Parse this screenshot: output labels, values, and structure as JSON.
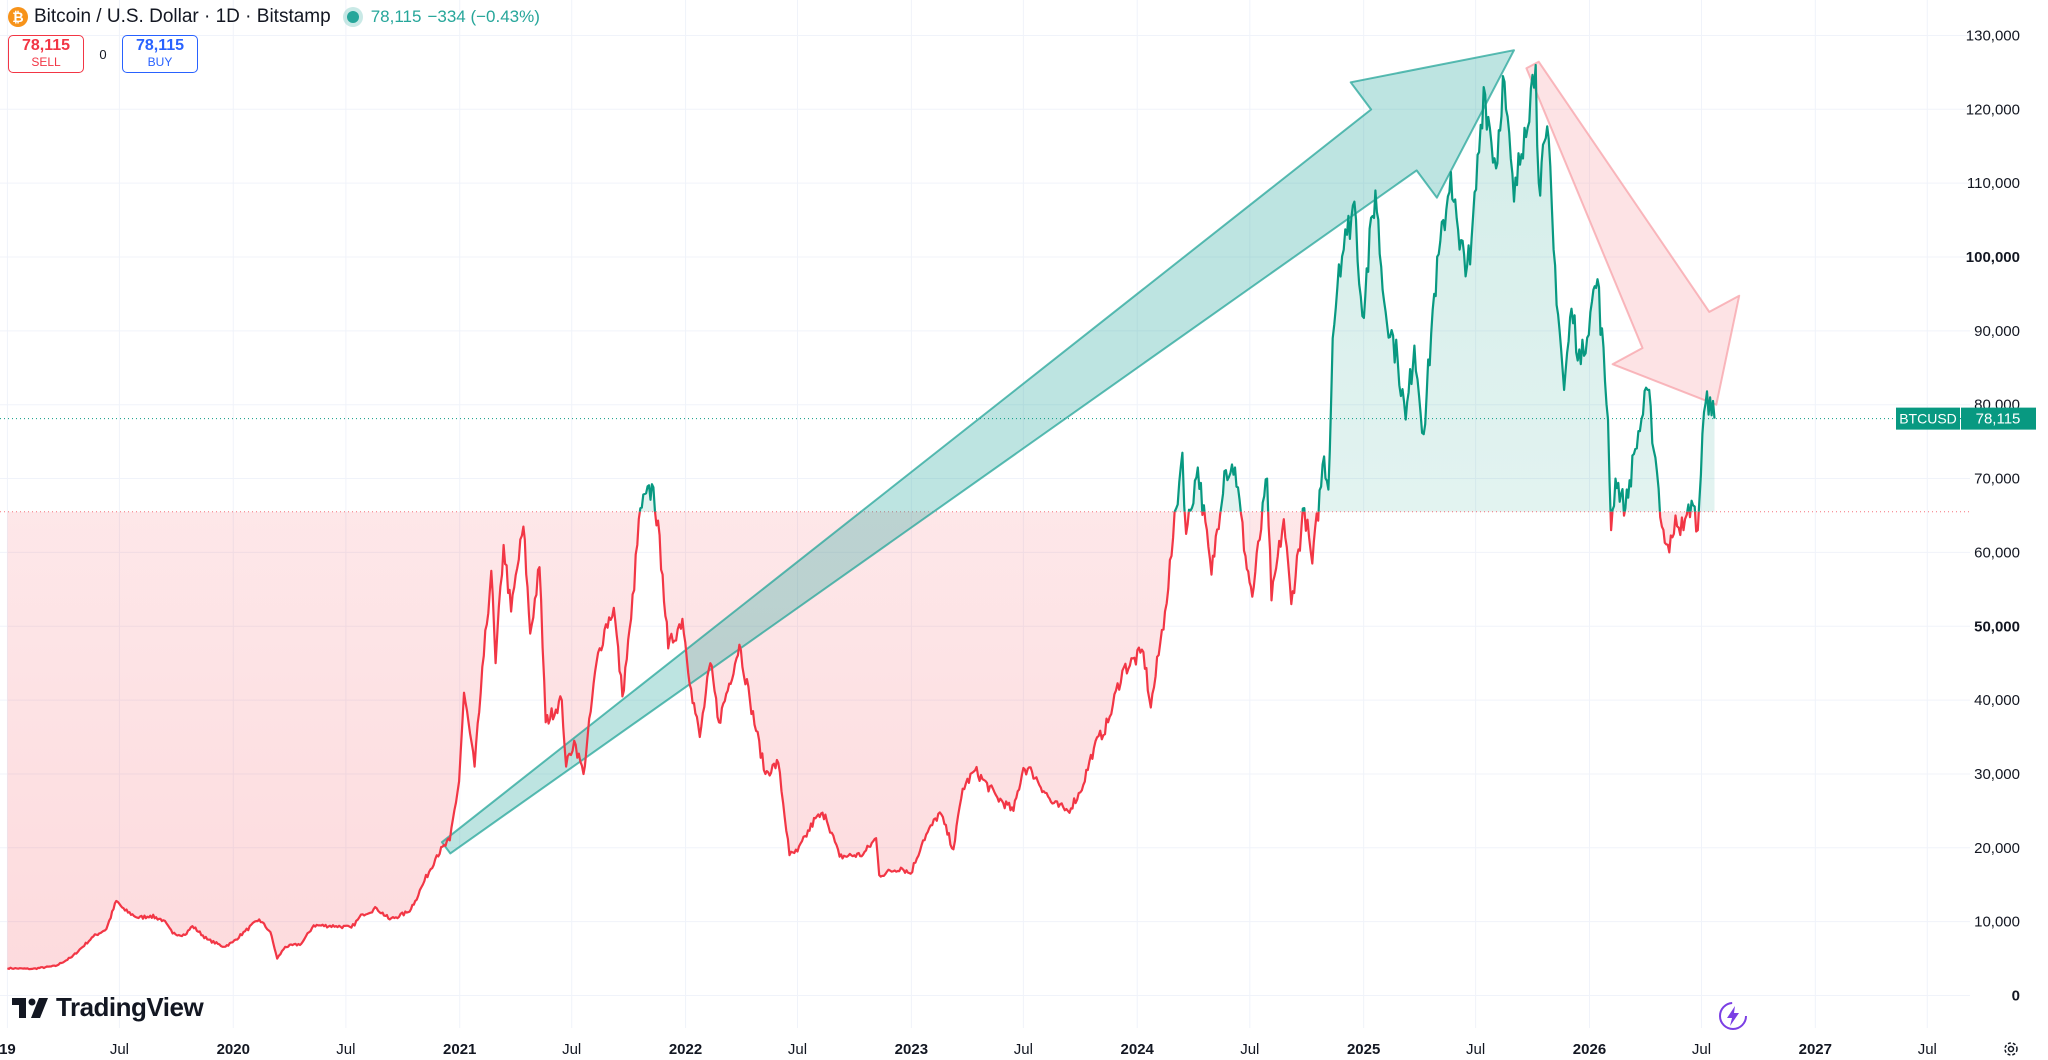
{
  "header": {
    "symbol_title": "Bitcoin / U.S. Dollar · 1D · Bitstamp",
    "last_price": "78,115",
    "change": "−334 (−0.43%)"
  },
  "trade": {
    "sell_price": "78,115",
    "sell_label": "SELL",
    "spread": "0",
    "buy_price": "78,115",
    "buy_label": "BUY"
  },
  "branding": {
    "logo_text": "TradingView"
  },
  "colors": {
    "up": "#089981",
    "down": "#f23645",
    "grid": "#f0f3fa",
    "text": "#131722"
  },
  "chart_data": {
    "type": "line",
    "series": [
      {
        "ticker": "BTCUSD",
        "baseline": 65500,
        "points": [
          [
            "2019-01-01",
            3700
          ],
          [
            "2019-02-10",
            3600
          ],
          [
            "2019-03-20",
            4000
          ],
          [
            "2019-04-15",
            5200
          ],
          [
            "2019-05-20",
            8000
          ],
          [
            "2019-06-10",
            9000
          ],
          [
            "2019-06-26",
            12800
          ],
          [
            "2019-07-10",
            11500
          ],
          [
            "2019-08-01",
            10500
          ],
          [
            "2019-08-20",
            10800
          ],
          [
            "2019-09-10",
            10200
          ],
          [
            "2019-09-25",
            8400
          ],
          [
            "2019-10-15",
            8200
          ],
          [
            "2019-10-27",
            9400
          ],
          [
            "2019-11-20",
            7600
          ],
          [
            "2019-12-17",
            6600
          ],
          [
            "2019-12-31",
            7200
          ],
          [
            "2020-01-20",
            8700
          ],
          [
            "2020-02-12",
            10300
          ],
          [
            "2020-03-01",
            8600
          ],
          [
            "2020-03-12",
            5000
          ],
          [
            "2020-03-25",
            6600
          ],
          [
            "2020-04-20",
            7000
          ],
          [
            "2020-05-10",
            9500
          ],
          [
            "2020-06-15",
            9400
          ],
          [
            "2020-07-10",
            9200
          ],
          [
            "2020-07-28",
            11000
          ],
          [
            "2020-08-20",
            11800
          ],
          [
            "2020-09-10",
            10300
          ],
          [
            "2020-10-10",
            11300
          ],
          [
            "2020-10-21",
            12800
          ],
          [
            "2020-11-05",
            15500
          ],
          [
            "2020-11-25",
            19000
          ],
          [
            "2020-12-16",
            21000
          ],
          [
            "2020-12-31",
            29000
          ],
          [
            "2021-01-08",
            41000
          ],
          [
            "2021-01-25",
            31000
          ],
          [
            "2021-02-09",
            46000
          ],
          [
            "2021-02-21",
            57500
          ],
          [
            "2021-02-28",
            45000
          ],
          [
            "2021-03-13",
            61000
          ],
          [
            "2021-03-25",
            52000
          ],
          [
            "2021-04-14",
            63500
          ],
          [
            "2021-04-25",
            49000
          ],
          [
            "2021-05-10",
            58000
          ],
          [
            "2021-05-20",
            37000
          ],
          [
            "2021-06-15",
            40000
          ],
          [
            "2021-06-22",
            31000
          ],
          [
            "2021-07-05",
            34500
          ],
          [
            "2021-07-20",
            30000
          ],
          [
            "2021-08-10",
            45000
          ],
          [
            "2021-08-23",
            49500
          ],
          [
            "2021-09-07",
            52500
          ],
          [
            "2021-09-21",
            40500
          ],
          [
            "2021-10-05",
            51000
          ],
          [
            "2021-10-20",
            66000
          ],
          [
            "2021-11-10",
            68800
          ],
          [
            "2021-11-25",
            57000
          ],
          [
            "2021-12-04",
            47000
          ],
          [
            "2021-12-27",
            51000
          ],
          [
            "2022-01-10",
            41500
          ],
          [
            "2022-01-24",
            35000
          ],
          [
            "2022-02-10",
            45000
          ],
          [
            "2022-02-24",
            37000
          ],
          [
            "2022-03-29",
            47500
          ],
          [
            "2022-04-15",
            40000
          ],
          [
            "2022-05-10",
            30000
          ],
          [
            "2022-05-31",
            31500
          ],
          [
            "2022-06-18",
            19000
          ],
          [
            "2022-07-01",
            19500
          ],
          [
            "2022-07-30",
            24000
          ],
          [
            "2022-08-15",
            24500
          ],
          [
            "2022-09-07",
            18800
          ],
          [
            "2022-10-15",
            19100
          ],
          [
            "2022-11-05",
            21300
          ],
          [
            "2022-11-10",
            16300
          ],
          [
            "2022-12-15",
            17300
          ],
          [
            "2022-12-31",
            16500
          ],
          [
            "2023-01-20",
            21000
          ],
          [
            "2023-02-16",
            24800
          ],
          [
            "2023-03-10",
            19800
          ],
          [
            "2023-03-25",
            28000
          ],
          [
            "2023-04-14",
            30500
          ],
          [
            "2023-05-20",
            26800
          ],
          [
            "2023-06-15",
            25000
          ],
          [
            "2023-07-01",
            30800
          ],
          [
            "2023-07-15",
            30300
          ],
          [
            "2023-08-17",
            26000
          ],
          [
            "2023-09-11",
            25000
          ],
          [
            "2023-10-01",
            27500
          ],
          [
            "2023-10-23",
            33500
          ],
          [
            "2023-11-15",
            37000
          ],
          [
            "2023-12-08",
            44000
          ],
          [
            "2024-01-11",
            46500
          ],
          [
            "2024-01-23",
            39000
          ],
          [
            "2024-02-15",
            52000
          ],
          [
            "2024-02-28",
            62000
          ],
          [
            "2024-03-14",
            73500
          ],
          [
            "2024-03-20",
            62500
          ],
          [
            "2024-04-08",
            71500
          ],
          [
            "2024-04-30",
            57000
          ],
          [
            "2024-05-21",
            71000
          ],
          [
            "2024-06-07",
            71500
          ],
          [
            "2024-06-24",
            59500
          ],
          [
            "2024-07-05",
            54000
          ],
          [
            "2024-07-29",
            70000
          ],
          [
            "2024-08-05",
            53500
          ],
          [
            "2024-08-25",
            64500
          ],
          [
            "2024-09-06",
            53000
          ],
          [
            "2024-09-27",
            66000
          ],
          [
            "2024-10-10",
            58500
          ],
          [
            "2024-10-29",
            73000
          ],
          [
            "2024-11-05",
            68500
          ],
          [
            "2024-11-12",
            89000
          ],
          [
            "2024-11-22",
            99000
          ],
          [
            "2024-12-05",
            103000
          ],
          [
            "2024-12-17",
            107500
          ],
          [
            "2024-12-30",
            92000
          ],
          [
            "2025-01-20",
            109000
          ],
          [
            "2025-02-03",
            94000
          ],
          [
            "2025-02-25",
            86000
          ],
          [
            "2025-03-10",
            78000
          ],
          [
            "2025-03-24",
            88000
          ],
          [
            "2025-04-08",
            76000
          ],
          [
            "2025-04-25",
            95000
          ],
          [
            "2025-05-22",
            111500
          ],
          [
            "2025-06-05",
            101000
          ],
          [
            "2025-06-22",
            99000
          ],
          [
            "2025-07-14",
            123000
          ],
          [
            "2025-08-03",
            112000
          ],
          [
            "2025-08-14",
            124500
          ],
          [
            "2025-09-01",
            107500
          ],
          [
            "2025-09-18",
            117500
          ],
          [
            "2025-10-06",
            126000
          ],
          [
            "2025-10-11",
            110000
          ],
          [
            "2025-10-27",
            116000
          ],
          [
            "2025-11-04",
            101000
          ],
          [
            "2025-11-21",
            82000
          ],
          [
            "2025-12-03",
            93000
          ],
          [
            "2025-12-18",
            85500
          ],
          [
            "2026-01-05",
            94000
          ],
          [
            "2026-01-14",
            97000
          ],
          [
            "2026-01-31",
            78000
          ],
          [
            "2026-02-05",
            63000
          ],
          [
            "2026-02-12",
            70000
          ],
          [
            "2026-02-28",
            66000
          ],
          [
            "2026-03-16",
            74000
          ],
          [
            "2026-04-05",
            82000
          ],
          [
            "2026-04-20",
            71000
          ],
          [
            "2026-04-28",
            63500
          ],
          [
            "2026-05-10",
            60000
          ],
          [
            "2026-05-20",
            65000
          ],
          [
            "2026-06-02",
            63000
          ],
          [
            "2026-06-15",
            67000
          ],
          [
            "2026-06-25",
            63000
          ],
          [
            "2026-07-05",
            79000
          ],
          [
            "2026-07-15",
            81000
          ],
          [
            "2026-07-22",
            78115
          ]
        ]
      }
    ],
    "x_axis": {
      "range": [
        "2018-12-20",
        "2027-09-08"
      ],
      "ticks": [
        {
          "date": "2019-01-01",
          "label": "19",
          "bold": true
        },
        {
          "date": "2019-07-01",
          "label": "Jul",
          "bold": false
        },
        {
          "date": "2020-01-01",
          "label": "2020",
          "bold": true
        },
        {
          "date": "2020-07-01",
          "label": "Jul",
          "bold": false
        },
        {
          "date": "2021-01-01",
          "label": "2021",
          "bold": true
        },
        {
          "date": "2021-07-01",
          "label": "Jul",
          "bold": false
        },
        {
          "date": "2022-01-01",
          "label": "2022",
          "bold": true
        },
        {
          "date": "2022-07-01",
          "label": "Jul",
          "bold": false
        },
        {
          "date": "2023-01-01",
          "label": "2023",
          "bold": true
        },
        {
          "date": "2023-07-01",
          "label": "Jul",
          "bold": false
        },
        {
          "date": "2024-01-01",
          "label": "2024",
          "bold": true
        },
        {
          "date": "2024-07-01",
          "label": "Jul",
          "bold": false
        },
        {
          "date": "2025-01-01",
          "label": "2025",
          "bold": true
        },
        {
          "date": "2025-07-01",
          "label": "Jul",
          "bold": false
        },
        {
          "date": "2026-01-01",
          "label": "2026",
          "bold": true
        },
        {
          "date": "2026-07-01",
          "label": "Jul",
          "bold": false
        },
        {
          "date": "2027-01-01",
          "label": "2027",
          "bold": true
        },
        {
          "date": "2027-07-01",
          "label": "Jul",
          "bold": false
        }
      ]
    },
    "y_axis": {
      "range": [
        -4400,
        134800
      ],
      "ticks": [
        {
          "value": 0,
          "label": "0",
          "bold": true
        },
        {
          "value": 10000,
          "label": "10,000",
          "bold": false
        },
        {
          "value": 20000,
          "label": "20,000",
          "bold": false
        },
        {
          "value": 30000,
          "label": "30,000",
          "bold": false
        },
        {
          "value": 40000,
          "label": "40,000",
          "bold": false
        },
        {
          "value": 50000,
          "label": "50,000",
          "bold": true
        },
        {
          "value": 60000,
          "label": "60,000",
          "bold": false
        },
        {
          "value": 70000,
          "label": "70,000",
          "bold": false
        },
        {
          "value": 80000,
          "label": "80,000",
          "bold": false
        },
        {
          "value": 90000,
          "label": "90,000",
          "bold": false
        },
        {
          "value": 100000,
          "label": "100,000",
          "bold": true
        },
        {
          "value": 110000,
          "label": "110,000",
          "bold": false
        },
        {
          "value": 120000,
          "label": "120,000",
          "bold": false
        },
        {
          "value": 130000,
          "label": "130,000",
          "bold": false
        }
      ]
    },
    "last_value": 78115,
    "price_label": {
      "ticker": "BTCUSD",
      "value": "78,115"
    },
    "annotations": [
      {
        "type": "arrow",
        "color": "#26a69a",
        "from": [
          "2020-12-10",
          20000
        ],
        "to": [
          "2025-09-01",
          128000
        ]
      },
      {
        "type": "arrow",
        "color": "#f7a1a8",
        "from": [
          "2025-10-01",
          126000
        ],
        "to": [
          "2026-07-25",
          80000
        ]
      }
    ],
    "grid": true
  }
}
